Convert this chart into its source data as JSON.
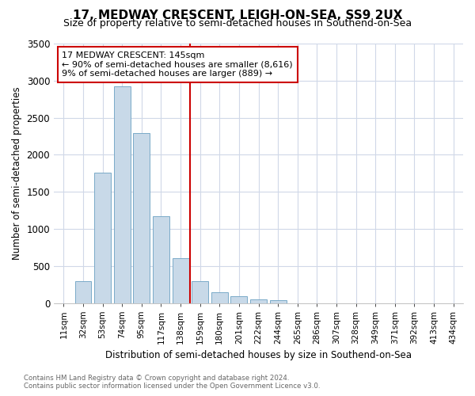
{
  "title": "17, MEDWAY CRESCENT, LEIGH-ON-SEA, SS9 2UX",
  "subtitle": "Size of property relative to semi-detached houses in Southend-on-Sea",
  "xlabel": "Distribution of semi-detached houses by size in Southend-on-Sea",
  "ylabel": "Number of semi-detached properties",
  "footnote1": "Contains HM Land Registry data © Crown copyright and database right 2024.",
  "footnote2": "Contains public sector information licensed under the Open Government Licence v3.0.",
  "annotation_title": "17 MEDWAY CRESCENT: 145sqm",
  "annotation_line1": "← 90% of semi-detached houses are smaller (8,616)",
  "annotation_line2": "9% of semi-detached houses are larger (889) →",
  "bar_labels": [
    "11sqm",
    "32sqm",
    "53sqm",
    "74sqm",
    "95sqm",
    "117sqm",
    "138sqm",
    "159sqm",
    "180sqm",
    "201sqm",
    "222sqm",
    "244sqm",
    "265sqm",
    "286sqm",
    "307sqm",
    "328sqm",
    "349sqm",
    "371sqm",
    "392sqm",
    "413sqm",
    "434sqm"
  ],
  "bar_values": [
    0,
    295,
    1760,
    2920,
    2290,
    1170,
    600,
    290,
    145,
    90,
    50,
    40,
    0,
    0,
    0,
    0,
    0,
    0,
    0,
    0,
    0
  ],
  "bar_color": "#c8d9e8",
  "bar_edge_color": "#7aaac8",
  "vline_x": 7,
  "vline_color": "#cc0000",
  "ylim": [
    0,
    3500
  ],
  "yticks": [
    0,
    500,
    1000,
    1500,
    2000,
    2500,
    3000,
    3500
  ],
  "background_color": "#ffffff",
  "grid_color": "#d0d8e8",
  "title_fontsize": 11,
  "subtitle_fontsize": 9,
  "annotation_box_color": "#cc0000",
  "annotation_fill": "#ffffff"
}
